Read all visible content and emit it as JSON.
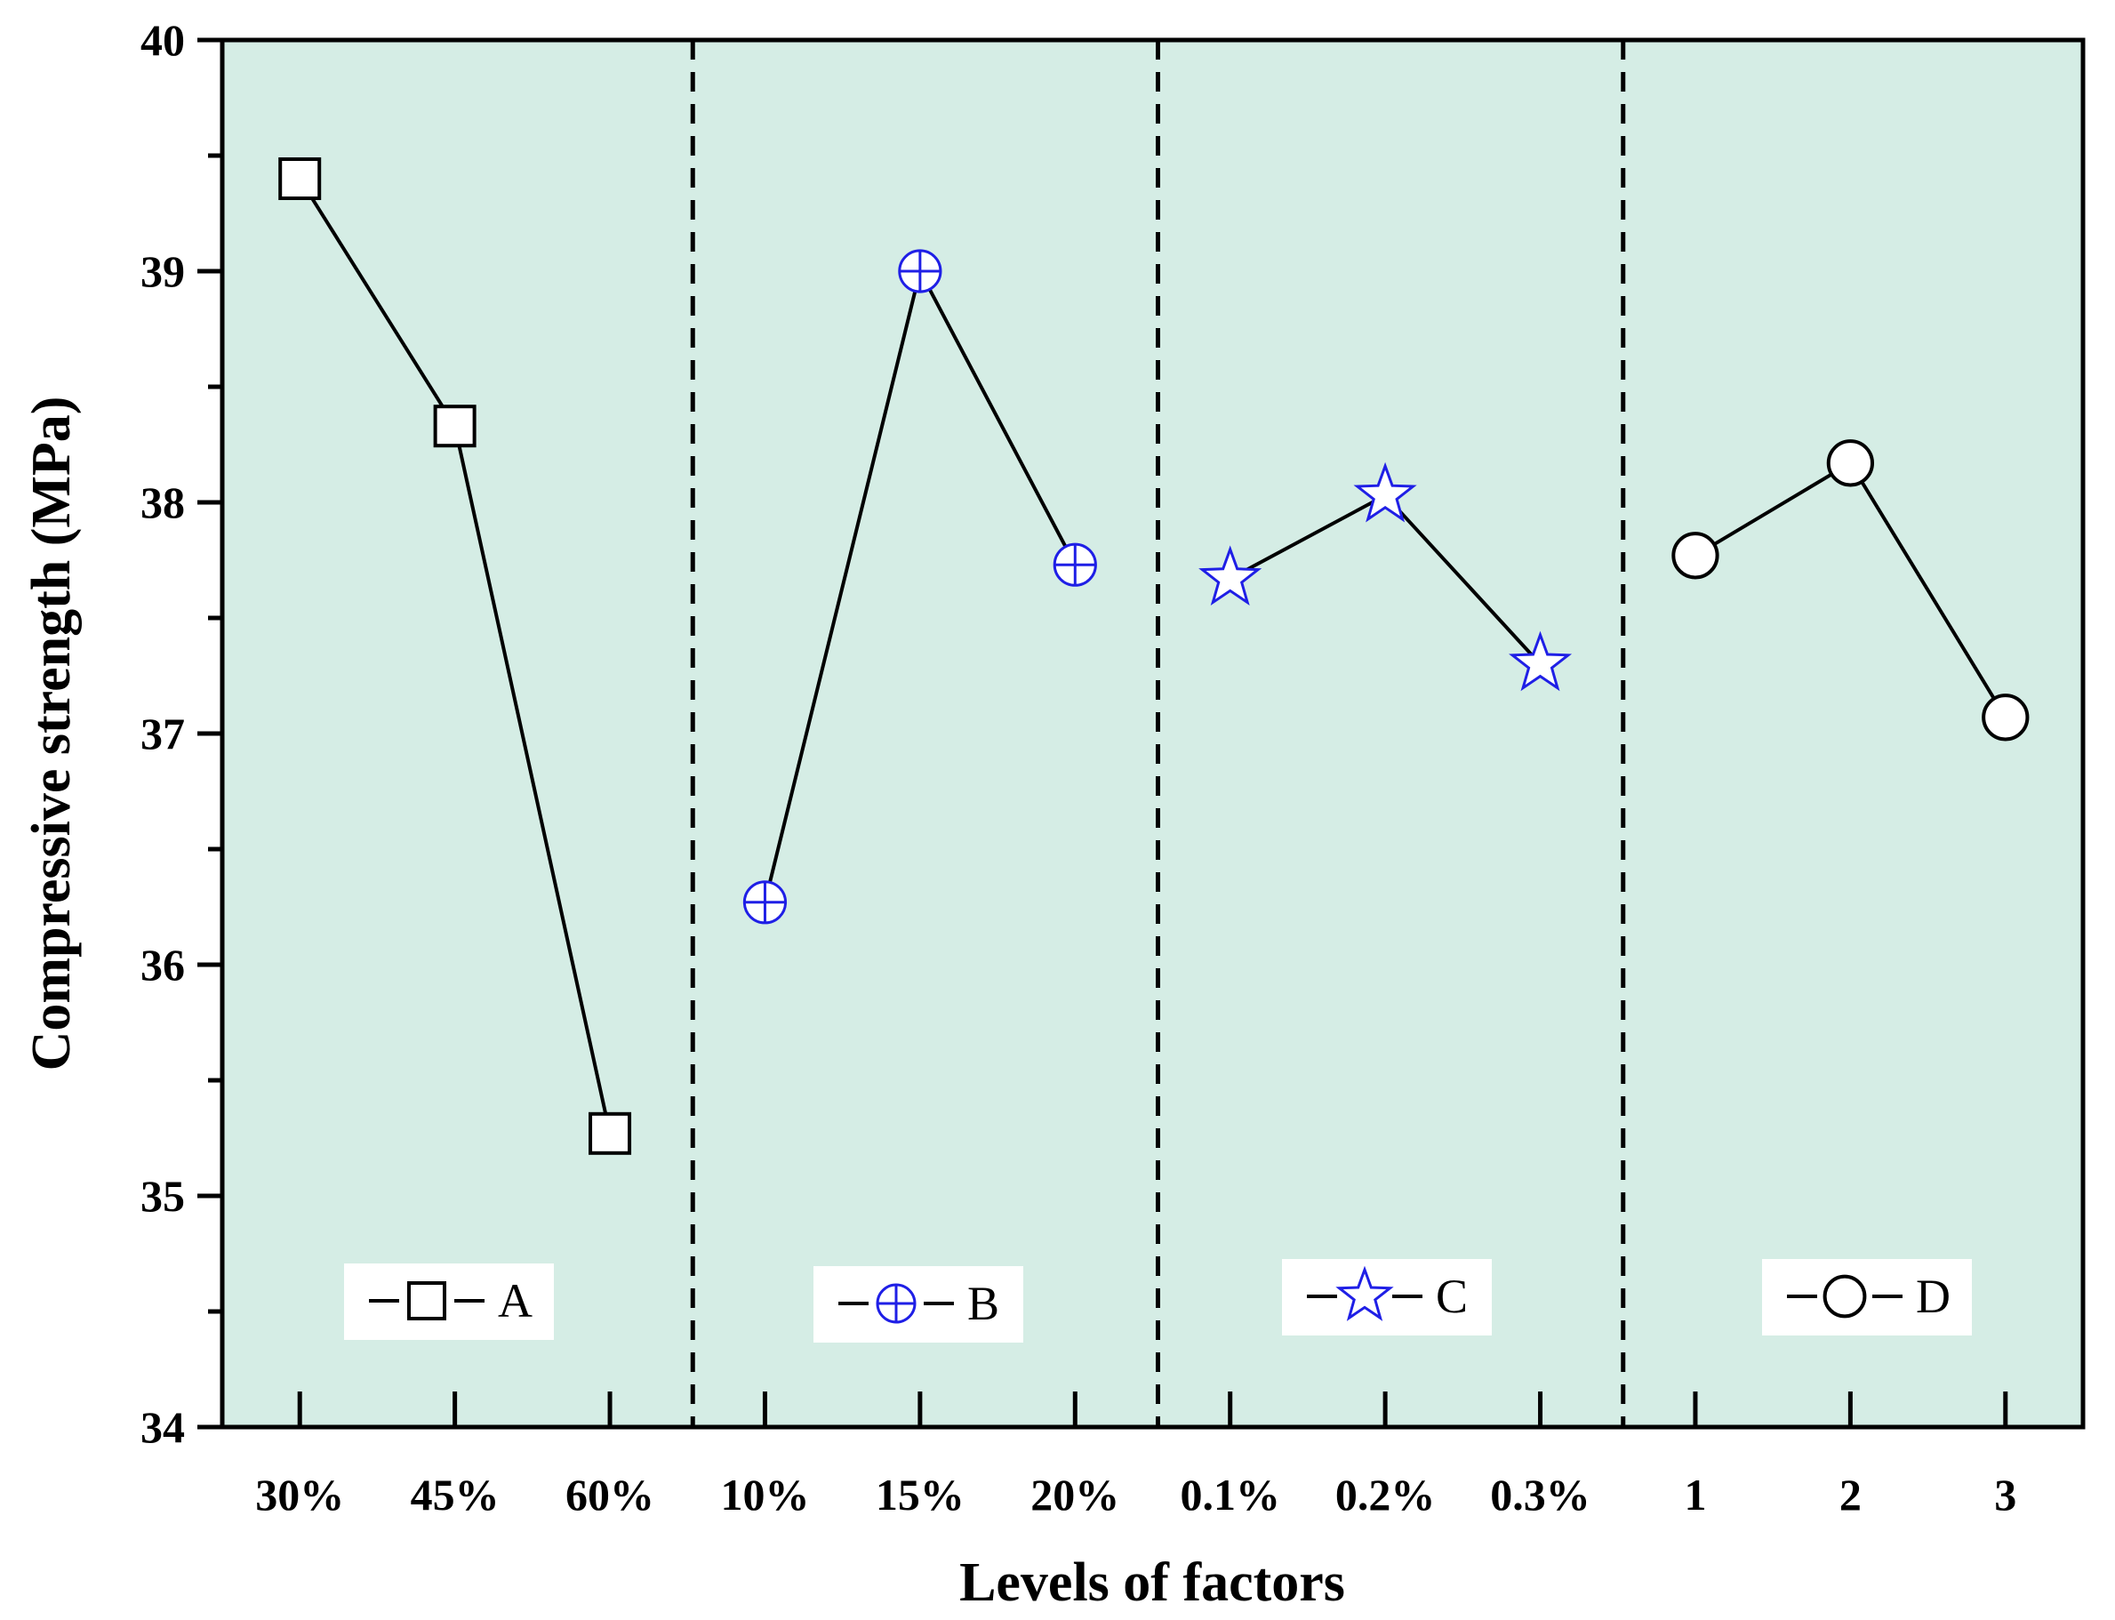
{
  "chart_data": {
    "type": "line",
    "title": "",
    "xlabel": "Levels of factors",
    "ylabel": "Compressive strength (MPa)",
    "ylim": [
      34,
      40
    ],
    "yticks": [
      "34",
      "35",
      "36",
      "37",
      "38",
      "39",
      "40"
    ],
    "plot_background": "#d5ede5",
    "grid": false,
    "groups": [
      {
        "name": "A",
        "marker": "square",
        "color": "#000000",
        "levels": [
          "30%",
          "45%",
          "60%"
        ],
        "values": [
          39.4,
          38.33,
          35.27
        ]
      },
      {
        "name": "B",
        "marker": "circle-plus",
        "color": "#1f1fe6",
        "levels": [
          "10%",
          "15%",
          "20%"
        ],
        "values": [
          36.27,
          39.0,
          37.73
        ]
      },
      {
        "name": "C",
        "marker": "star",
        "color": "#1f1fe6",
        "levels": [
          "0.1%",
          "0.2%",
          "0.3%"
        ],
        "values": [
          37.67,
          38.03,
          37.3
        ]
      },
      {
        "name": "D",
        "marker": "circle",
        "color": "#000000",
        "levels": [
          "1",
          "2",
          "3"
        ],
        "values": [
          37.77,
          38.17,
          37.07
        ]
      }
    ]
  }
}
